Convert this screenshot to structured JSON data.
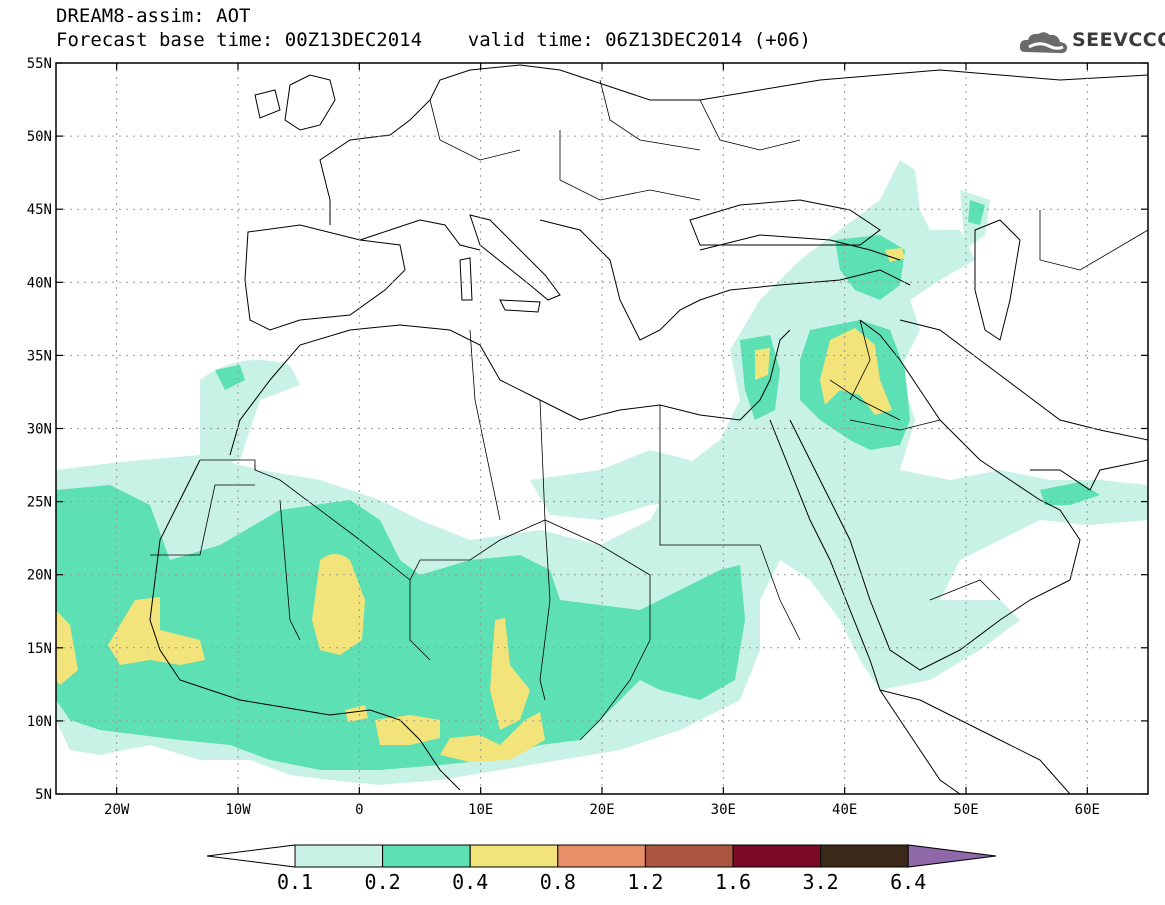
{
  "header": {
    "title_line1": "DREAM8-assim: AOT",
    "title_line2": "Forecast base time: 00Z13DEC2014    valid time: 06Z13DEC2014 (+06)"
  },
  "logo": {
    "text": "SEEVCCC",
    "icon": "cloud-icon"
  },
  "map": {
    "lon_range": [
      -25,
      65
    ],
    "lat_range": [
      5,
      55
    ],
    "lat_ticks": [
      "5N",
      "10N",
      "15N",
      "20N",
      "25N",
      "30N",
      "35N",
      "40N",
      "45N",
      "50N",
      "55N"
    ],
    "lon_ticks": [
      "20W",
      "10W",
      "0",
      "10E",
      "20E",
      "30E",
      "40E",
      "50E",
      "60E"
    ],
    "gridlines": "dotted",
    "background": "#ffffff",
    "coastline_color": "#000000"
  },
  "colorbar": {
    "labels": [
      "0.1",
      "0.2",
      "0.4",
      "0.8",
      "1.2",
      "1.6",
      "3.2",
      "6.4"
    ],
    "colors": [
      "#c8f2e6",
      "#5ce0b4",
      "#f2e47a",
      "#e88e68",
      "#aa5540",
      "#7a0a28",
      "#3c2818",
      "#8e68a8"
    ],
    "under_color": "#ffffff"
  }
}
